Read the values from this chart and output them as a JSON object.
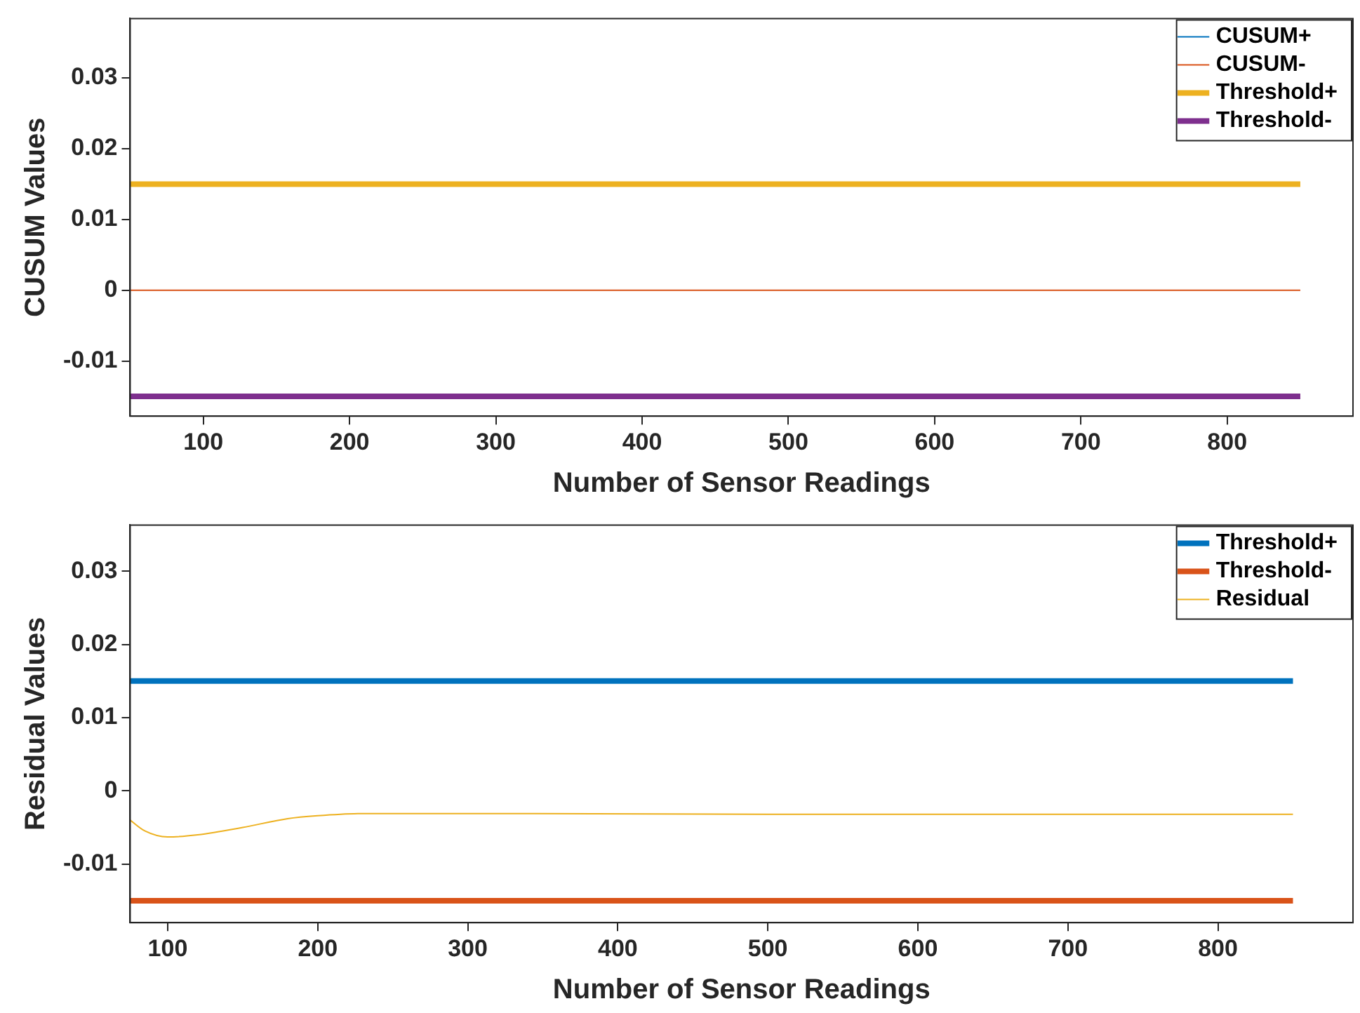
{
  "chart_data": [
    {
      "type": "line",
      "xlabel": "Number of Sensor Readings",
      "ylabel": "CUSUM Values",
      "xlim": [
        50,
        886
      ],
      "xticks": [
        100,
        200,
        300,
        400,
        500,
        600,
        700,
        800
      ],
      "ylim": [
        -0.0178,
        0.0384
      ],
      "yticks": [
        -0.01,
        0,
        0.01,
        0.02,
        0.03
      ],
      "grid": false,
      "legend": "top right",
      "marker": "none",
      "series": [
        {
          "name": "CUSUM+",
          "color": "#0072bd",
          "values": [
            null,
            null
          ]
        },
        {
          "name": "CUSUM-",
          "color": "#d95319",
          "x": [
            50,
            850
          ],
          "values": [
            0,
            0
          ]
        },
        {
          "name": "Threshold+",
          "color": "#edb120",
          "x": [
            50,
            850
          ],
          "values": [
            0.015,
            0.015
          ]
        },
        {
          "name": "Threshold-",
          "color": "#7e2f8e",
          "x": [
            50,
            850
          ],
          "values": [
            -0.015,
            -0.015
          ]
        }
      ]
    },
    {
      "type": "line",
      "xlabel": "Number of Sensor Readings",
      "ylabel": "Residual Values",
      "xlim": [
        75,
        890
      ],
      "xticks": [
        100,
        200,
        300,
        400,
        500,
        600,
        700,
        800
      ],
      "ylim": [
        -0.018,
        0.0363
      ],
      "yticks": [
        -0.01,
        0,
        0.01,
        0.02,
        0.03
      ],
      "grid": false,
      "legend": "top right",
      "marker": "none",
      "series": [
        {
          "name": "Threshold+",
          "color": "#0072bd",
          "x": [
            75,
            850
          ],
          "values": [
            0.015,
            0.015
          ]
        },
        {
          "name": "Threshold-",
          "color": "#d95319",
          "x": [
            75,
            850
          ],
          "values": [
            -0.015,
            -0.015
          ]
        },
        {
          "name": "Residual",
          "color": "#edb120",
          "x": [
            75,
            85,
            100,
            120,
            150,
            180,
            200,
            230,
            300,
            500,
            850
          ],
          "values": [
            -0.004,
            -0.0055,
            -0.0063,
            -0.006,
            -0.005,
            -0.0038,
            -0.0034,
            -0.0031,
            -0.0031,
            -0.0032,
            -0.0032
          ]
        }
      ]
    }
  ]
}
